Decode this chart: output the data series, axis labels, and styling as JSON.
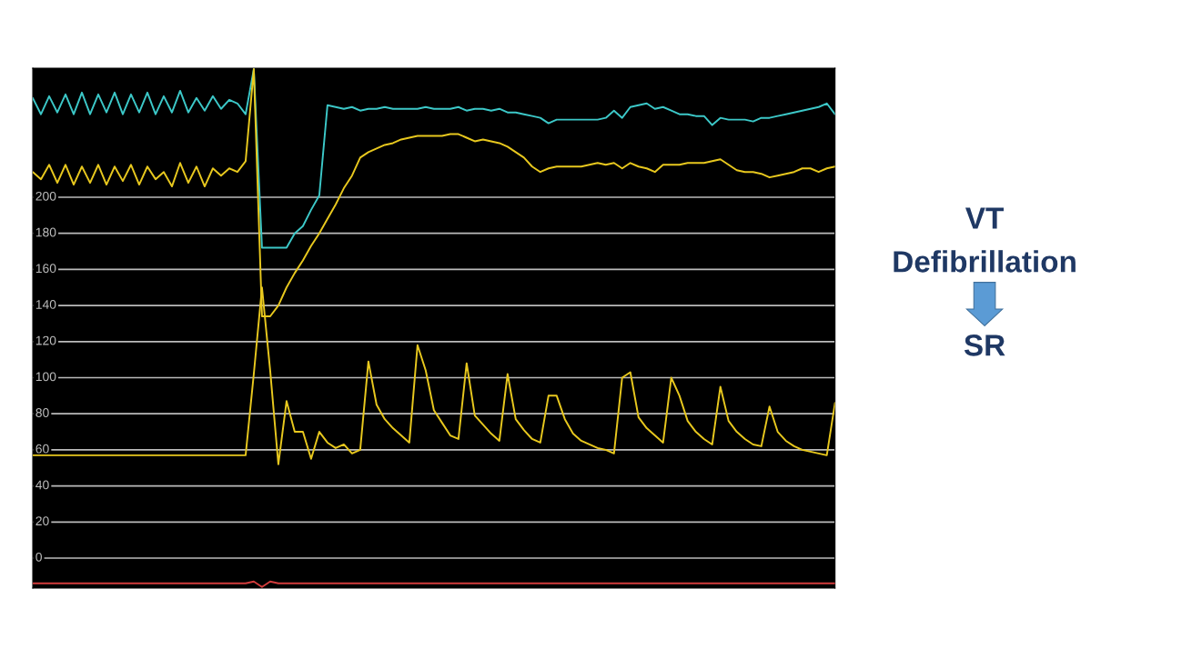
{
  "chart_data": {
    "type": "line",
    "ylim": [
      -16.6,
      271.5
    ],
    "yticks": [
      0,
      20,
      40,
      60,
      80,
      100,
      120,
      140,
      160,
      180,
      200
    ],
    "grid": "y",
    "legend": false,
    "categories": [
      null,
      null,
      null,
      null,
      null,
      null,
      null,
      null,
      null,
      null,
      null,
      null,
      null,
      null,
      null,
      null,
      null,
      null,
      null,
      null,
      null,
      null,
      null,
      null,
      null,
      null,
      null,
      null,
      null,
      null,
      null,
      null,
      null,
      null,
      null,
      null,
      null,
      null,
      null,
      null,
      null,
      null,
      null,
      null,
      null,
      null,
      null,
      null,
      null,
      null,
      null,
      null,
      null,
      null,
      null,
      null,
      null,
      null,
      null,
      null,
      null,
      null,
      null,
      null,
      null,
      null,
      null,
      null,
      null,
      null,
      null,
      null,
      null,
      null,
      null,
      null,
      null,
      null,
      null,
      null,
      null,
      null,
      null,
      null,
      null,
      null,
      null,
      null,
      null,
      null,
      null,
      null,
      null,
      null,
      null,
      null,
      null,
      null,
      null
    ],
    "annotations": [
      "VT",
      "Defibrillation",
      "SR"
    ],
    "series": [
      {
        "color": "#3cc8c8",
        "values": [
          255,
          246,
          256,
          247,
          257,
          246,
          258,
          246,
          257,
          247,
          258,
          246,
          257,
          247,
          258,
          246,
          256,
          247,
          259,
          247,
          255,
          248,
          256,
          249,
          254,
          252,
          246,
          271,
          172,
          172,
          172,
          172,
          180,
          184,
          193,
          201,
          251,
          250,
          249,
          250,
          248,
          249,
          249,
          250,
          249,
          249,
          249,
          249,
          250,
          249,
          249,
          249,
          250,
          248,
          249,
          249,
          248,
          249,
          247,
          247,
          246,
          245,
          244,
          241,
          243,
          243,
          243,
          243,
          243,
          243,
          244,
          248,
          244,
          250,
          251,
          252,
          249,
          250,
          248,
          246,
          246,
          245,
          245,
          240,
          244,
          243,
          243,
          243,
          242,
          244,
          244,
          245,
          246,
          247,
          248,
          249,
          250,
          252,
          246
        ]
      },
      {
        "color": "#e8c81e",
        "values": [
          214,
          210,
          218,
          208,
          218,
          207,
          217,
          208,
          218,
          207,
          217,
          209,
          218,
          207,
          217,
          210,
          214,
          206,
          219,
          208,
          217,
          206,
          216,
          212,
          216,
          214,
          220,
          271,
          134,
          134,
          140,
          150,
          158,
          165,
          173,
          180,
          188,
          196,
          205,
          212,
          222,
          225,
          227,
          229,
          230,
          232,
          233,
          234,
          234,
          234,
          234,
          235,
          235,
          233,
          231,
          232,
          231,
          230,
          228,
          225,
          222,
          217,
          214,
          216,
          217,
          217,
          217,
          217,
          218,
          219,
          218,
          219,
          216,
          219,
          217,
          216,
          214,
          218,
          218,
          218,
          219,
          219,
          219,
          220,
          221,
          218,
          215,
          214,
          214,
          213,
          211,
          212,
          213,
          214,
          216,
          216,
          214,
          216,
          217
        ]
      },
      {
        "color": "#e8c81e",
        "values": [
          57,
          57,
          57,
          57,
          57,
          57,
          57,
          57,
          57,
          57,
          57,
          57,
          57,
          57,
          57,
          57,
          57,
          57,
          57,
          57,
          57,
          57,
          57,
          57,
          57,
          57,
          57,
          102,
          150,
          104,
          52,
          87,
          70,
          70,
          55,
          70,
          64,
          61,
          63,
          58,
          60,
          109,
          85,
          77,
          72,
          68,
          64,
          118,
          104,
          82,
          75,
          68,
          66,
          108,
          79,
          74,
          69,
          65,
          102,
          77,
          71,
          66,
          64,
          90,
          90,
          77,
          69,
          65,
          63,
          61,
          60,
          58,
          100,
          103,
          78,
          72,
          68,
          64,
          100,
          90,
          76,
          70,
          66,
          63,
          95,
          76,
          70,
          66,
          63,
          62,
          84,
          70,
          65,
          62,
          60,
          59,
          58,
          57,
          86
        ]
      },
      {
        "color": "#d23c3c",
        "values": [
          -14,
          -14,
          -14,
          -14,
          -14,
          -14,
          -14,
          -14,
          -14,
          -14,
          -14,
          -14,
          -14,
          -14,
          -14,
          -14,
          -14,
          -14,
          -14,
          -14,
          -14,
          -14,
          -14,
          -14,
          -14,
          -14,
          -14,
          -13,
          -16,
          -13,
          -14,
          -14,
          -14,
          -14,
          -14,
          -14,
          -14,
          -14,
          -14,
          -14,
          -14,
          -14,
          -14,
          -14,
          -14,
          -14,
          -14,
          -14,
          -14,
          -14,
          -14,
          -14,
          -14,
          -14,
          -14,
          -14,
          -14,
          -14,
          -14,
          -14,
          -14,
          -14,
          -14,
          -14,
          -14,
          -14,
          -14,
          -14,
          -14,
          -14,
          -14,
          -14,
          -14,
          -14,
          -14,
          -14,
          -14,
          -14,
          -14,
          -14,
          -14,
          -14,
          -14,
          -14,
          -14,
          -14,
          -14,
          -14,
          -14,
          -14,
          -14,
          -14,
          -14,
          -14,
          -14,
          -14,
          -14,
          -14,
          -14
        ]
      }
    ]
  }
}
